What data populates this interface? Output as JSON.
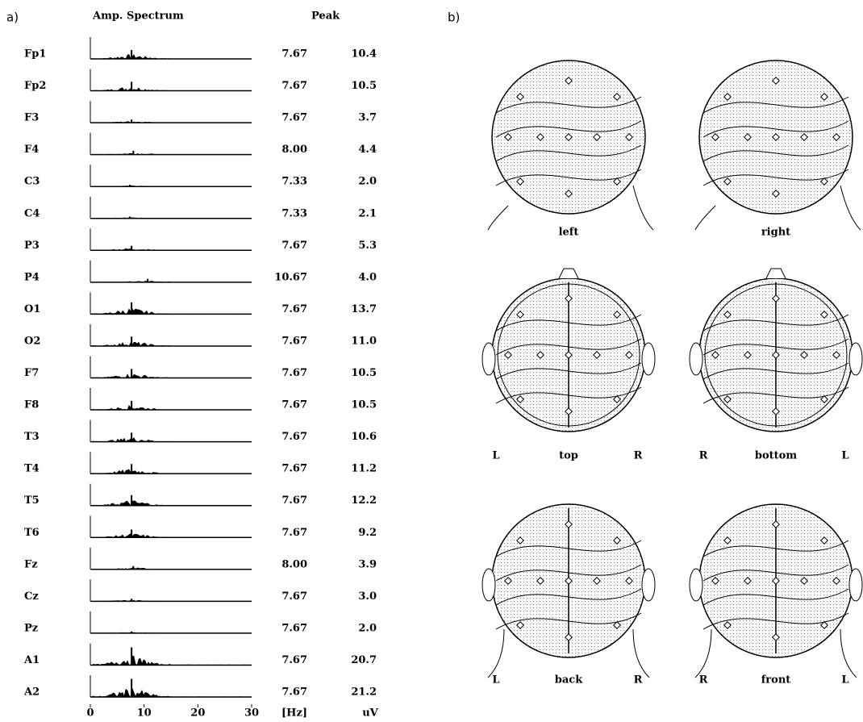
{
  "panel_a": {
    "label": "a)",
    "header_spectrum": "Amp. Spectrum",
    "header_peak": "Peak",
    "rows": [
      {
        "channel": "Fp1",
        "peak_hz": "7.67",
        "peak_uv": "10.4"
      },
      {
        "channel": "Fp2",
        "peak_hz": "7.67",
        "peak_uv": "10.5"
      },
      {
        "channel": "F3",
        "peak_hz": "7.67",
        "peak_uv": "3.7"
      },
      {
        "channel": "F4",
        "peak_hz": "8.00",
        "peak_uv": "4.4"
      },
      {
        "channel": "C3",
        "peak_hz": "7.33",
        "peak_uv": "2.0"
      },
      {
        "channel": "C4",
        "peak_hz": "7.33",
        "peak_uv": "2.1"
      },
      {
        "channel": "P3",
        "peak_hz": "7.67",
        "peak_uv": "5.3"
      },
      {
        "channel": "P4",
        "peak_hz": "10.67",
        "peak_uv": "4.0"
      },
      {
        "channel": "O1",
        "peak_hz": "7.67",
        "peak_uv": "13.7"
      },
      {
        "channel": "O2",
        "peak_hz": "7.67",
        "peak_uv": "11.0"
      },
      {
        "channel": "F7",
        "peak_hz": "7.67",
        "peak_uv": "10.5"
      },
      {
        "channel": "F8",
        "peak_hz": "7.67",
        "peak_uv": "10.5"
      },
      {
        "channel": "T3",
        "peak_hz": "7.67",
        "peak_uv": "10.6"
      },
      {
        "channel": "T4",
        "peak_hz": "7.67",
        "peak_uv": "11.2"
      },
      {
        "channel": "T5",
        "peak_hz": "7.67",
        "peak_uv": "12.2"
      },
      {
        "channel": "T6",
        "peak_hz": "7.67",
        "peak_uv": "9.2"
      },
      {
        "channel": "Fz",
        "peak_hz": "8.00",
        "peak_uv": "3.9"
      },
      {
        "channel": "Cz",
        "peak_hz": "7.67",
        "peak_uv": "3.0"
      },
      {
        "channel": "Pz",
        "peak_hz": "7.67",
        "peak_uv": "2.0"
      },
      {
        "channel": "A1",
        "peak_hz": "7.67",
        "peak_uv": "20.7"
      },
      {
        "channel": "A2",
        "peak_hz": "7.67",
        "peak_uv": "21.2"
      }
    ],
    "x_ticks": [
      0,
      10,
      20,
      30
    ],
    "unit_hz": "[Hz]",
    "unit_uv": "uV"
  },
  "panel_b": {
    "label": "b)",
    "views": [
      {
        "name": "left"
      },
      {
        "name": "right"
      },
      {
        "name": "top",
        "left_side": "L",
        "right_side": "R"
      },
      {
        "name": "bottom",
        "left_side": "R",
        "right_side": "L"
      },
      {
        "name": "back",
        "left_side": "L",
        "right_side": "R"
      },
      {
        "name": "front",
        "left_side": "R",
        "right_side": "L"
      }
    ]
  }
}
